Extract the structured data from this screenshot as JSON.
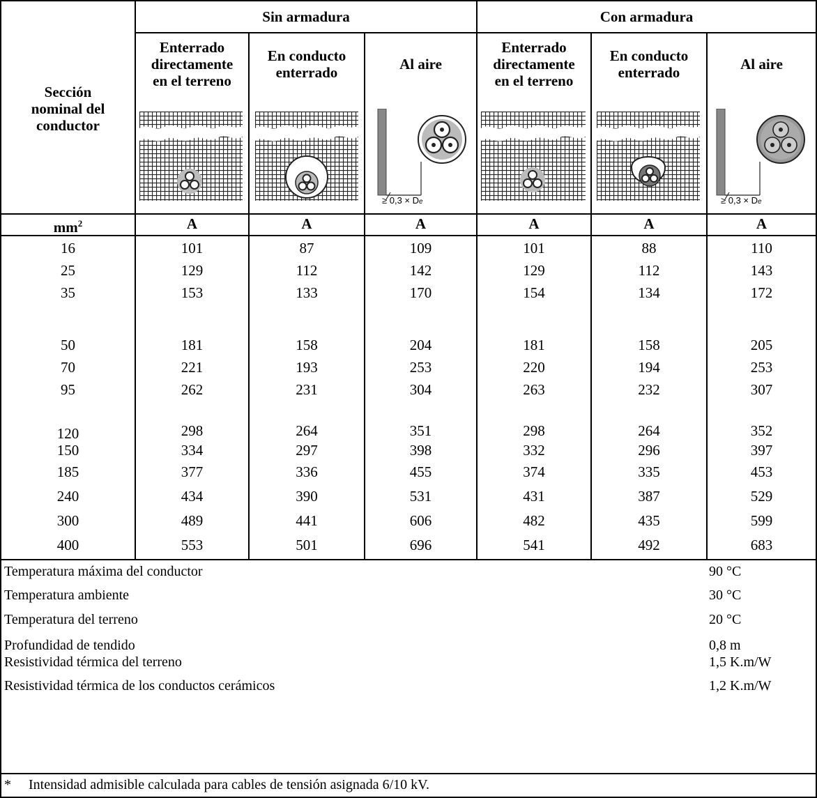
{
  "header": {
    "col0": [
      "Sección",
      "nominal del",
      "conductor"
    ],
    "group_left": "Sin armadura",
    "group_right": "Con armadura",
    "sub": [
      [
        "Enterrado",
        "directamente",
        "en el terreno"
      ],
      [
        "En conducto",
        "enterrado"
      ],
      [
        "Al aire"
      ],
      [
        "Enterrado",
        "directamente",
        "en el terreno"
      ],
      [
        "En conducto",
        "enterrado"
      ],
      [
        "Al aire"
      ]
    ],
    "air_label": "≥ 0,3 × D",
    "air_sub": "e"
  },
  "units": {
    "col0_base": "mm",
    "col0_sup": "2",
    "cols": [
      "A",
      "A",
      "A",
      "A",
      "A",
      "A"
    ]
  },
  "rows": [
    {
      "s": "16",
      "v": [
        "101",
        "87",
        "109",
        "101",
        "88",
        "110"
      ]
    },
    {
      "s": "25",
      "v": [
        "129",
        "112",
        "142",
        "129",
        "112",
        "143"
      ]
    },
    {
      "s": "35",
      "v": [
        "153",
        "133",
        "170",
        "154",
        "134",
        "172"
      ]
    },
    {
      "s": "50",
      "v": [
        "181",
        "158",
        "204",
        "181",
        "158",
        "205"
      ]
    },
    {
      "s": "70",
      "v": [
        "221",
        "193",
        "253",
        "220",
        "194",
        "253"
      ]
    },
    {
      "s": "95",
      "v": [
        "262",
        "231",
        "304",
        "263",
        "232",
        "307"
      ]
    },
    {
      "s": "120",
      "v": [
        "298",
        "264",
        "351",
        "298",
        "264",
        "352"
      ]
    },
    {
      "s": "150",
      "v": [
        "334",
        "297",
        "398",
        "332",
        "296",
        "397"
      ]
    },
    {
      "s": "185",
      "v": [
        "377",
        "336",
        "455",
        "374",
        "335",
        "453"
      ]
    },
    {
      "s": "240",
      "v": [
        "434",
        "390",
        "531",
        "431",
        "387",
        "529"
      ]
    },
    {
      "s": "300",
      "v": [
        "489",
        "441",
        "606",
        "482",
        "435",
        "599"
      ]
    },
    {
      "s": "400",
      "v": [
        "553",
        "501",
        "696",
        "541",
        "492",
        "683"
      ]
    }
  ],
  "conditions": [
    {
      "label": "Temperatura máxima del conductor",
      "value": "90 °C"
    },
    {
      "label": "Temperatura ambiente",
      "value": "30 °C"
    },
    {
      "label": "Temperatura del terreno",
      "value": "20 °C"
    },
    {
      "label": "Profundidad de tendido",
      "value": "0,8 m"
    },
    {
      "label": "Resistividad térmica del terreno",
      "value": "1,5 K.m/W"
    },
    {
      "label": "Resistividad térmica de los conductos cerámicos",
      "value": "1,2 K.m/W"
    }
  ],
  "footnote": {
    "mark": "*",
    "text": "Intensidad admisible calculada para cables de tensión asignada 6/10 kV."
  }
}
